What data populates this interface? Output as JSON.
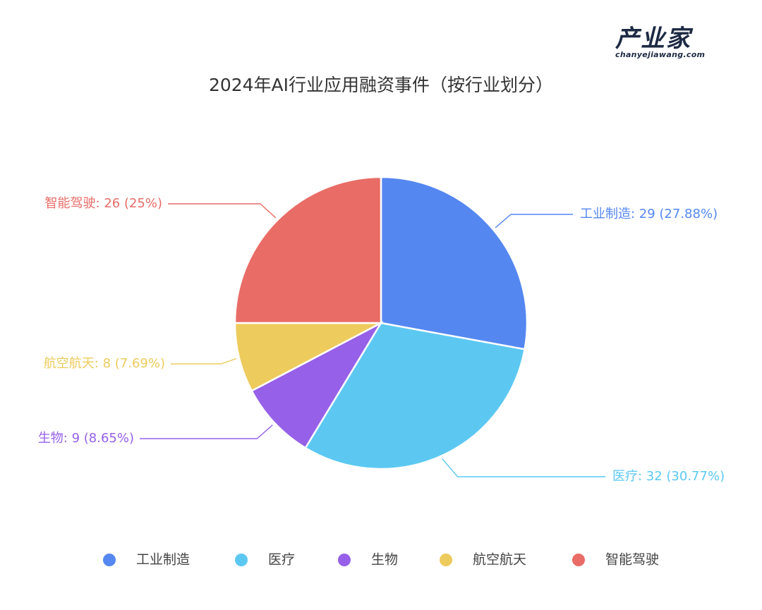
{
  "logo": {
    "name": "产业家",
    "site": "chanyejiawang.com"
  },
  "chart_data": {
    "type": "pie",
    "title": "2024年AI行业应用融资事件（按行业划分）",
    "start_angle_deg": 90,
    "direction": "clockwise",
    "legend_position": "bottom",
    "slices": [
      {
        "name": "工业制造",
        "value": 29,
        "percent": "27.88%",
        "label": "工业制造: 29 (27.88%)",
        "color": "#5587F1"
      },
      {
        "name": "医疗",
        "value": 32,
        "percent": "30.77%",
        "label": "医疗: 32 (30.77%)",
        "color": "#5CC8F2"
      },
      {
        "name": "生物",
        "value": 9,
        "percent": "8.65%",
        "label": "生物: 9 (8.65%)",
        "color": "#9660E8"
      },
      {
        "name": "航空航天",
        "value": 8,
        "percent": "7.69%",
        "label": "航空航天: 8 (7.69%)",
        "color": "#EDCB5C"
      },
      {
        "name": "智能驾驶",
        "value": 26,
        "percent": "25%",
        "label": "智能驾驶: 26 (25%)",
        "color": "#E96C67"
      }
    ]
  }
}
